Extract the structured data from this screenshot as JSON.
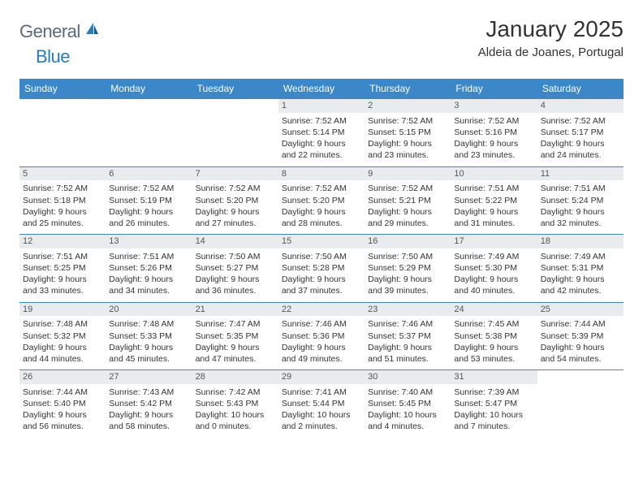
{
  "logo": {
    "general": "General",
    "blue": "Blue"
  },
  "title": "January 2025",
  "location": "Aldeia de Joanes, Portugal",
  "colors": {
    "header_bg": "#3b87c8",
    "header_text": "#ffffff",
    "daynum_bg": "#e8ecef",
    "border": "#3b87c8",
    "logo_general": "#5a6a78",
    "logo_blue": "#2b7bbf"
  },
  "dayNames": [
    "Sunday",
    "Monday",
    "Tuesday",
    "Wednesday",
    "Thursday",
    "Friday",
    "Saturday"
  ],
  "weeks": [
    [
      {
        "n": "",
        "sr": "",
        "ss": "",
        "dl": "",
        "empty": true
      },
      {
        "n": "",
        "sr": "",
        "ss": "",
        "dl": "",
        "empty": true
      },
      {
        "n": "",
        "sr": "",
        "ss": "",
        "dl": "",
        "empty": true
      },
      {
        "n": "1",
        "sr": "Sunrise: 7:52 AM",
        "ss": "Sunset: 5:14 PM",
        "dl": "Daylight: 9 hours and 22 minutes."
      },
      {
        "n": "2",
        "sr": "Sunrise: 7:52 AM",
        "ss": "Sunset: 5:15 PM",
        "dl": "Daylight: 9 hours and 23 minutes."
      },
      {
        "n": "3",
        "sr": "Sunrise: 7:52 AM",
        "ss": "Sunset: 5:16 PM",
        "dl": "Daylight: 9 hours and 23 minutes."
      },
      {
        "n": "4",
        "sr": "Sunrise: 7:52 AM",
        "ss": "Sunset: 5:17 PM",
        "dl": "Daylight: 9 hours and 24 minutes."
      }
    ],
    [
      {
        "n": "5",
        "sr": "Sunrise: 7:52 AM",
        "ss": "Sunset: 5:18 PM",
        "dl": "Daylight: 9 hours and 25 minutes."
      },
      {
        "n": "6",
        "sr": "Sunrise: 7:52 AM",
        "ss": "Sunset: 5:19 PM",
        "dl": "Daylight: 9 hours and 26 minutes."
      },
      {
        "n": "7",
        "sr": "Sunrise: 7:52 AM",
        "ss": "Sunset: 5:20 PM",
        "dl": "Daylight: 9 hours and 27 minutes."
      },
      {
        "n": "8",
        "sr": "Sunrise: 7:52 AM",
        "ss": "Sunset: 5:20 PM",
        "dl": "Daylight: 9 hours and 28 minutes."
      },
      {
        "n": "9",
        "sr": "Sunrise: 7:52 AM",
        "ss": "Sunset: 5:21 PM",
        "dl": "Daylight: 9 hours and 29 minutes."
      },
      {
        "n": "10",
        "sr": "Sunrise: 7:51 AM",
        "ss": "Sunset: 5:22 PM",
        "dl": "Daylight: 9 hours and 31 minutes."
      },
      {
        "n": "11",
        "sr": "Sunrise: 7:51 AM",
        "ss": "Sunset: 5:24 PM",
        "dl": "Daylight: 9 hours and 32 minutes."
      }
    ],
    [
      {
        "n": "12",
        "sr": "Sunrise: 7:51 AM",
        "ss": "Sunset: 5:25 PM",
        "dl": "Daylight: 9 hours and 33 minutes."
      },
      {
        "n": "13",
        "sr": "Sunrise: 7:51 AM",
        "ss": "Sunset: 5:26 PM",
        "dl": "Daylight: 9 hours and 34 minutes."
      },
      {
        "n": "14",
        "sr": "Sunrise: 7:50 AM",
        "ss": "Sunset: 5:27 PM",
        "dl": "Daylight: 9 hours and 36 minutes."
      },
      {
        "n": "15",
        "sr": "Sunrise: 7:50 AM",
        "ss": "Sunset: 5:28 PM",
        "dl": "Daylight: 9 hours and 37 minutes."
      },
      {
        "n": "16",
        "sr": "Sunrise: 7:50 AM",
        "ss": "Sunset: 5:29 PM",
        "dl": "Daylight: 9 hours and 39 minutes."
      },
      {
        "n": "17",
        "sr": "Sunrise: 7:49 AM",
        "ss": "Sunset: 5:30 PM",
        "dl": "Daylight: 9 hours and 40 minutes."
      },
      {
        "n": "18",
        "sr": "Sunrise: 7:49 AM",
        "ss": "Sunset: 5:31 PM",
        "dl": "Daylight: 9 hours and 42 minutes."
      }
    ],
    [
      {
        "n": "19",
        "sr": "Sunrise: 7:48 AM",
        "ss": "Sunset: 5:32 PM",
        "dl": "Daylight: 9 hours and 44 minutes."
      },
      {
        "n": "20",
        "sr": "Sunrise: 7:48 AM",
        "ss": "Sunset: 5:33 PM",
        "dl": "Daylight: 9 hours and 45 minutes."
      },
      {
        "n": "21",
        "sr": "Sunrise: 7:47 AM",
        "ss": "Sunset: 5:35 PM",
        "dl": "Daylight: 9 hours and 47 minutes."
      },
      {
        "n": "22",
        "sr": "Sunrise: 7:46 AM",
        "ss": "Sunset: 5:36 PM",
        "dl": "Daylight: 9 hours and 49 minutes."
      },
      {
        "n": "23",
        "sr": "Sunrise: 7:46 AM",
        "ss": "Sunset: 5:37 PM",
        "dl": "Daylight: 9 hours and 51 minutes."
      },
      {
        "n": "24",
        "sr": "Sunrise: 7:45 AM",
        "ss": "Sunset: 5:38 PM",
        "dl": "Daylight: 9 hours and 53 minutes."
      },
      {
        "n": "25",
        "sr": "Sunrise: 7:44 AM",
        "ss": "Sunset: 5:39 PM",
        "dl": "Daylight: 9 hours and 54 minutes."
      }
    ],
    [
      {
        "n": "26",
        "sr": "Sunrise: 7:44 AM",
        "ss": "Sunset: 5:40 PM",
        "dl": "Daylight: 9 hours and 56 minutes."
      },
      {
        "n": "27",
        "sr": "Sunrise: 7:43 AM",
        "ss": "Sunset: 5:42 PM",
        "dl": "Daylight: 9 hours and 58 minutes."
      },
      {
        "n": "28",
        "sr": "Sunrise: 7:42 AM",
        "ss": "Sunset: 5:43 PM",
        "dl": "Daylight: 10 hours and 0 minutes."
      },
      {
        "n": "29",
        "sr": "Sunrise: 7:41 AM",
        "ss": "Sunset: 5:44 PM",
        "dl": "Daylight: 10 hours and 2 minutes."
      },
      {
        "n": "30",
        "sr": "Sunrise: 7:40 AM",
        "ss": "Sunset: 5:45 PM",
        "dl": "Daylight: 10 hours and 4 minutes."
      },
      {
        "n": "31",
        "sr": "Sunrise: 7:39 AM",
        "ss": "Sunset: 5:47 PM",
        "dl": "Daylight: 10 hours and 7 minutes."
      },
      {
        "n": "",
        "sr": "",
        "ss": "",
        "dl": "",
        "empty": true
      }
    ]
  ]
}
